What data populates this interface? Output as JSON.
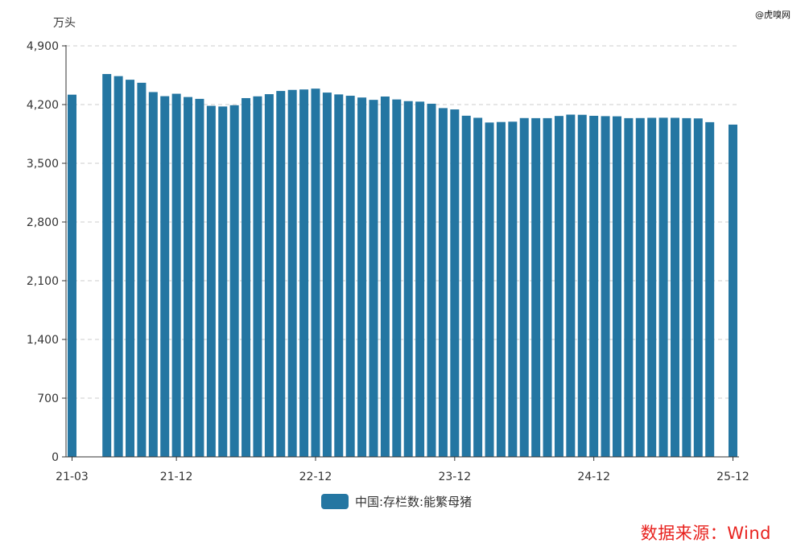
{
  "watermark": "@虎嗅网",
  "source_note": "数据来源：Wind",
  "colors": {
    "bar": "#2476a2",
    "axis": "#333333",
    "grid": "#cccccc",
    "source": "#e8211d"
  },
  "chart_data": {
    "type": "bar",
    "ylabel": "万头",
    "ylim": [
      0,
      4900
    ],
    "yticks": [
      0,
      700,
      1400,
      2100,
      2800,
      3500,
      4200,
      4900
    ],
    "ytick_labels": [
      "0",
      "700",
      "1,400",
      "2,100",
      "2,800",
      "3,500",
      "4,200",
      "4,900"
    ],
    "grid": "horizontal dashed",
    "legend_position": "bottom-center",
    "x_tick_labels": [
      "21-03",
      "21-12",
      "22-12",
      "23-12",
      "24-12",
      "25-12"
    ],
    "categories": [
      "21-03",
      "21-04",
      "21-05",
      "21-06",
      "21-07",
      "21-08",
      "21-09",
      "21-10",
      "21-11",
      "21-12",
      "22-01",
      "22-02",
      "22-03",
      "22-04",
      "22-05",
      "22-06",
      "22-07",
      "22-08",
      "22-09",
      "22-10",
      "22-11",
      "22-12",
      "23-01",
      "23-02",
      "23-03",
      "23-04",
      "23-05",
      "23-06",
      "23-07",
      "23-08",
      "23-09",
      "23-10",
      "23-11",
      "23-12",
      "24-01",
      "24-02",
      "24-03",
      "24-04",
      "24-05",
      "24-06",
      "24-07",
      "24-08",
      "24-09",
      "24-10",
      "24-11",
      "24-12",
      "25-01",
      "25-02",
      "25-03",
      "25-04",
      "25-05",
      "25-06",
      "25-07",
      "25-08",
      "25-09",
      "25-10",
      "25-11",
      "25-12"
    ],
    "series": [
      {
        "name": "中国:存栏数:能繁母猪",
        "values": [
          4318,
          null,
          null,
          4564,
          4539,
          4496,
          4460,
          4349,
          4300,
          4329,
          4290,
          4268,
          4185,
          4177,
          4192,
          4277,
          4298,
          4324,
          4362,
          4375,
          4380,
          4390,
          4343,
          4321,
          4305,
          4284,
          4256,
          4296,
          4261,
          4241,
          4235,
          4210,
          4158,
          4142,
          4067,
          4042,
          3986,
          3992,
          3996,
          4039,
          4038,
          4038,
          4064,
          4080,
          4078,
          4066,
          4062,
          4060,
          4038,
          4039,
          4042,
          4043,
          4042,
          4038,
          4035,
          3990,
          null,
          3961
        ]
      }
    ]
  }
}
